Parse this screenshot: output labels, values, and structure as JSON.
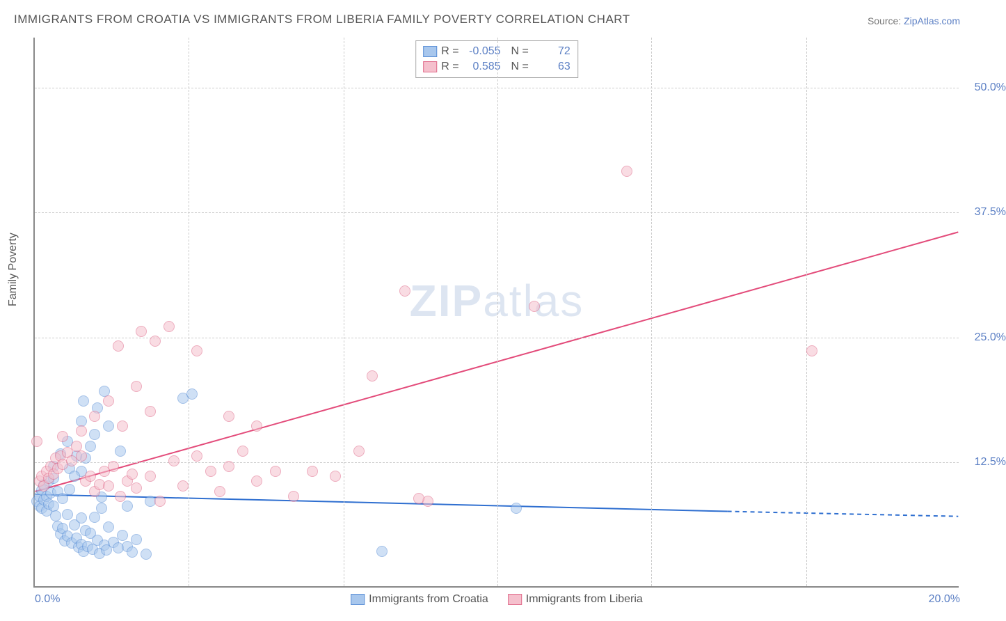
{
  "title": "IMMIGRANTS FROM CROATIA VS IMMIGRANTS FROM LIBERIA FAMILY POVERTY CORRELATION CHART",
  "source_prefix": "Source: ",
  "source_link": "ZipAtlas.com",
  "y_axis_label": "Family Poverty",
  "watermark_bold": "ZIP",
  "watermark_light": "atlas",
  "chart": {
    "type": "scatter",
    "background_color": "#ffffff",
    "grid_color": "#cccccc",
    "axis_color": "#888888",
    "text_color": "#555555",
    "value_color": "#5b7fc4",
    "xlim": [
      0,
      20
    ],
    "ylim": [
      0,
      55
    ],
    "x_ticks": [
      0,
      20
    ],
    "x_tick_labels": [
      "0.0%",
      "20.0%"
    ],
    "y_ticks": [
      12.5,
      25.0,
      37.5,
      50.0
    ],
    "y_tick_labels": [
      "12.5%",
      "25.0%",
      "37.5%",
      "50.0%"
    ],
    "x_gridlines": [
      3.33,
      6.67,
      10.0,
      13.33,
      16.67
    ],
    "marker_radius": 8,
    "marker_opacity": 0.55,
    "marker_border_width": 1.5,
    "series": [
      {
        "name": "Immigrants from Croatia",
        "fill_color": "#a8c7ed",
        "border_color": "#5a8fd6",
        "line_color": "#2f6fd0",
        "line_width": 2,
        "R": "-0.055",
        "N": "72",
        "trend": {
          "x1": 0,
          "y1": 9.2,
          "x2": 15,
          "y2": 7.5,
          "dash_from_x": 15,
          "dash_to_x": 20,
          "dash_y2": 7.0
        },
        "points": [
          [
            0.05,
            8.5
          ],
          [
            0.1,
            9.0
          ],
          [
            0.1,
            8.0
          ],
          [
            0.15,
            9.6
          ],
          [
            0.15,
            7.8
          ],
          [
            0.2,
            10.2
          ],
          [
            0.2,
            8.6
          ],
          [
            0.25,
            9.0
          ],
          [
            0.25,
            7.5
          ],
          [
            0.3,
            8.2
          ],
          [
            0.3,
            10.5
          ],
          [
            0.35,
            9.3
          ],
          [
            0.4,
            8.0
          ],
          [
            0.4,
            10.8
          ],
          [
            0.45,
            7.0
          ],
          [
            0.5,
            9.5
          ],
          [
            0.5,
            6.0
          ],
          [
            0.55,
            5.2
          ],
          [
            0.6,
            8.8
          ],
          [
            0.6,
            5.8
          ],
          [
            0.65,
            4.5
          ],
          [
            0.7,
            7.2
          ],
          [
            0.7,
            5.0
          ],
          [
            0.75,
            9.7
          ],
          [
            0.8,
            4.3
          ],
          [
            0.85,
            6.1
          ],
          [
            0.9,
            4.8
          ],
          [
            0.95,
            3.9
          ],
          [
            1.0,
            4.2
          ],
          [
            1.0,
            6.8
          ],
          [
            1.05,
            3.5
          ],
          [
            1.1,
            5.6
          ],
          [
            1.15,
            4.0
          ],
          [
            1.2,
            5.3
          ],
          [
            1.25,
            3.7
          ],
          [
            1.3,
            6.9
          ],
          [
            1.35,
            4.6
          ],
          [
            1.4,
            3.3
          ],
          [
            1.45,
            7.8
          ],
          [
            1.5,
            4.1
          ],
          [
            1.55,
            3.6
          ],
          [
            1.6,
            5.9
          ],
          [
            1.7,
            4.4
          ],
          [
            1.8,
            3.8
          ],
          [
            1.9,
            5.1
          ],
          [
            2.0,
            4.0
          ],
          [
            2.1,
            3.4
          ],
          [
            2.2,
            4.7
          ],
          [
            2.4,
            3.2
          ],
          [
            1.0,
            11.5
          ],
          [
            1.1,
            12.8
          ],
          [
            1.2,
            14.0
          ],
          [
            1.3,
            15.2
          ],
          [
            0.9,
            13.0
          ],
          [
            1.0,
            16.5
          ],
          [
            1.35,
            17.8
          ],
          [
            1.5,
            19.5
          ],
          [
            1.6,
            16.0
          ],
          [
            1.05,
            18.5
          ],
          [
            1.85,
            13.5
          ],
          [
            0.4,
            12.0
          ],
          [
            0.55,
            13.2
          ],
          [
            0.7,
            14.5
          ],
          [
            0.75,
            11.8
          ],
          [
            2.0,
            8.0
          ],
          [
            2.5,
            8.5
          ],
          [
            3.2,
            18.8
          ],
          [
            3.4,
            19.2
          ],
          [
            7.5,
            3.5
          ],
          [
            10.4,
            7.8
          ],
          [
            1.45,
            8.9
          ],
          [
            0.85,
            11.0
          ]
        ]
      },
      {
        "name": "Immigrants from Liberia",
        "fill_color": "#f5c0cd",
        "border_color": "#e06a8a",
        "line_color": "#e34b7a",
        "line_width": 2,
        "R": "0.585",
        "N": "63",
        "trend": {
          "x1": 0,
          "y1": 9.5,
          "x2": 20,
          "y2": 35.5
        },
        "points": [
          [
            0.1,
            10.5
          ],
          [
            0.15,
            11.0
          ],
          [
            0.2,
            10.0
          ],
          [
            0.25,
            11.5
          ],
          [
            0.3,
            10.8
          ],
          [
            0.35,
            12.0
          ],
          [
            0.4,
            11.2
          ],
          [
            0.45,
            12.8
          ],
          [
            0.5,
            11.8
          ],
          [
            0.55,
            13.0
          ],
          [
            0.6,
            12.2
          ],
          [
            0.7,
            13.4
          ],
          [
            0.8,
            12.5
          ],
          [
            0.9,
            14.0
          ],
          [
            1.0,
            13.0
          ],
          [
            1.1,
            10.5
          ],
          [
            1.2,
            11.0
          ],
          [
            1.3,
            9.5
          ],
          [
            1.4,
            10.2
          ],
          [
            1.5,
            11.5
          ],
          [
            1.6,
            10.0
          ],
          [
            1.7,
            12.0
          ],
          [
            1.85,
            9.0
          ],
          [
            2.0,
            10.5
          ],
          [
            2.1,
            11.2
          ],
          [
            2.2,
            9.8
          ],
          [
            2.5,
            11.0
          ],
          [
            2.7,
            8.5
          ],
          [
            3.0,
            12.5
          ],
          [
            3.2,
            10.0
          ],
          [
            3.5,
            13.0
          ],
          [
            3.8,
            11.5
          ],
          [
            4.0,
            9.5
          ],
          [
            4.2,
            12.0
          ],
          [
            4.5,
            13.5
          ],
          [
            4.8,
            10.5
          ],
          [
            5.2,
            11.5
          ],
          [
            5.6,
            9.0
          ],
          [
            6.5,
            11.0
          ],
          [
            1.0,
            15.5
          ],
          [
            1.3,
            17.0
          ],
          [
            1.6,
            18.5
          ],
          [
            1.9,
            16.0
          ],
          [
            2.2,
            20.0
          ],
          [
            2.5,
            17.5
          ],
          [
            0.05,
            14.5
          ],
          [
            0.6,
            15.0
          ],
          [
            1.8,
            24.0
          ],
          [
            2.3,
            25.5
          ],
          [
            2.6,
            24.5
          ],
          [
            2.9,
            26.0
          ],
          [
            3.5,
            23.5
          ],
          [
            4.2,
            17.0
          ],
          [
            4.8,
            16.0
          ],
          [
            6.0,
            11.5
          ],
          [
            7.0,
            13.5
          ],
          [
            7.3,
            21.0
          ],
          [
            8.0,
            29.5
          ],
          [
            8.5,
            8.5
          ],
          [
            10.8,
            28.0
          ],
          [
            12.8,
            41.5
          ],
          [
            16.8,
            23.5
          ],
          [
            8.3,
            8.8
          ]
        ]
      }
    ]
  },
  "legend_bottom": [
    {
      "label": "Immigrants from Croatia",
      "fill": "#a8c7ed",
      "border": "#5a8fd6"
    },
    {
      "label": "Immigrants from Liberia",
      "fill": "#f5c0cd",
      "border": "#e06a8a"
    }
  ]
}
